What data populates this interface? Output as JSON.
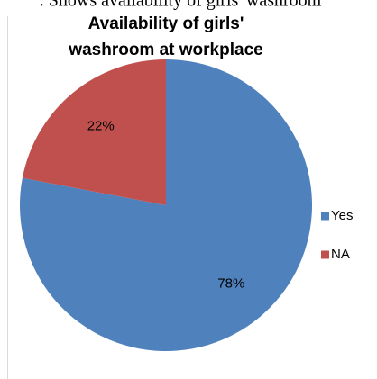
{
  "caption": ". Shows availability of girls' washroom",
  "chart_data": {
    "type": "pie",
    "title": [
      "Availability of girls'",
      "washroom at workplace"
    ],
    "categories": [
      "Yes",
      "NA"
    ],
    "values": [
      78,
      22
    ],
    "value_labels": [
      "78%",
      "22%"
    ],
    "colors": [
      "#4f81bd",
      "#c0504d"
    ],
    "legend": "right"
  }
}
